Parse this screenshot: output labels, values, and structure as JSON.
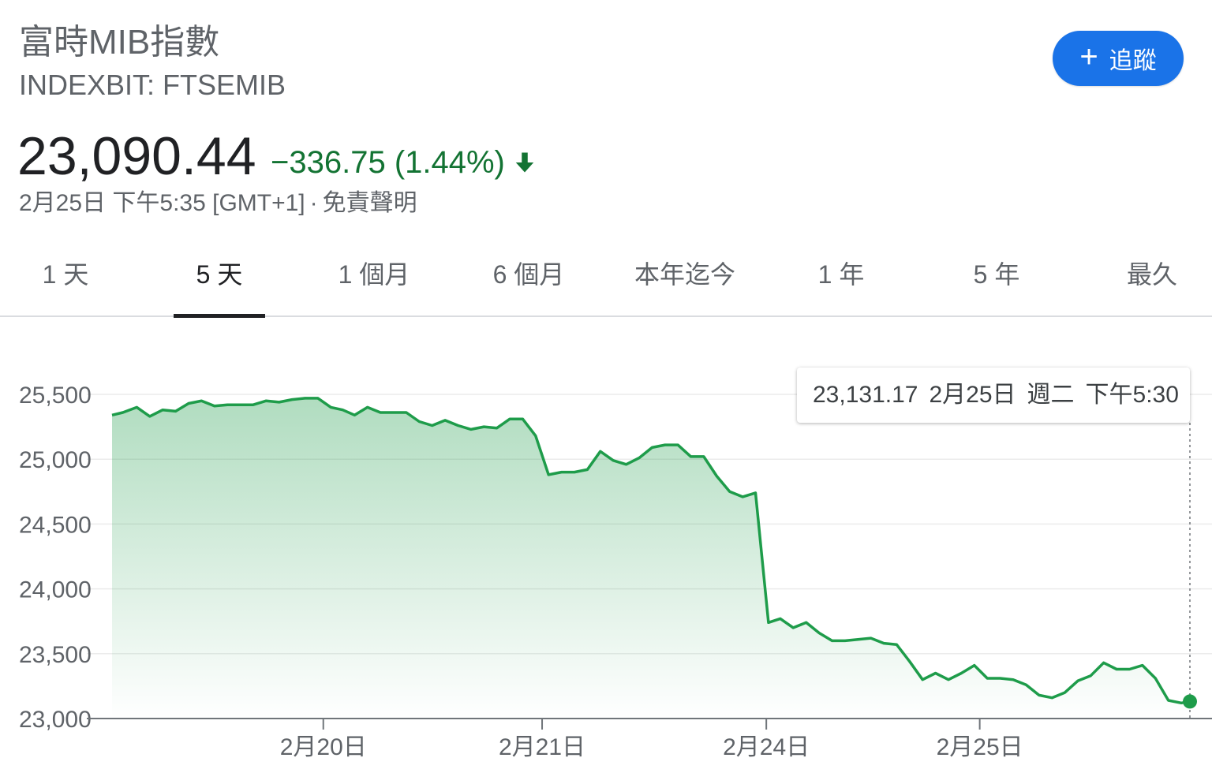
{
  "header": {
    "title": "富時MIB指數",
    "subtitle": "INDEXBIT: FTSEMIB",
    "follow_label": "追蹤"
  },
  "quote": {
    "price": "23,090.44",
    "change": "−336.75 (1.44%)",
    "direction": "down",
    "timestamp": "2月25日 下午5:35 [GMT+1]",
    "separator": "·",
    "disclaimer": "免責聲明"
  },
  "tabs": [
    {
      "label": "1 天",
      "active": false
    },
    {
      "label": "5 天",
      "active": true
    },
    {
      "label": "1 個月",
      "active": false
    },
    {
      "label": "6 個月",
      "active": false
    },
    {
      "label": "本年迄今",
      "active": false
    },
    {
      "label": "1 年",
      "active": false
    },
    {
      "label": "5 年",
      "active": false
    },
    {
      "label": "最久",
      "active": false
    }
  ],
  "tooltip": {
    "value": "23,131.17",
    "date": "2月25日",
    "weekday": "週二",
    "time": "下午5:30"
  },
  "colors": {
    "positive": "#137333",
    "line": "#1e9c4a",
    "accent": "#1a73e8"
  },
  "chart_data": {
    "type": "area",
    "title": "",
    "xlabel": "",
    "ylabel": "",
    "ylim": [
      23000,
      25700
    ],
    "yticks": [
      23000,
      23500,
      24000,
      24500,
      25000,
      25500
    ],
    "ytick_labels": [
      "23,000",
      "23,500",
      "24,000",
      "24,500",
      "25,000",
      "25,500"
    ],
    "x_range": [
      0,
      100
    ],
    "day_ticks": [
      {
        "x": 19.6,
        "label": "2月20日"
      },
      {
        "x": 39.9,
        "label": "2月21日"
      },
      {
        "x": 60.7,
        "label": "2月24日"
      },
      {
        "x": 80.5,
        "label": "2月25日"
      }
    ],
    "series": [
      {
        "x": [
          0,
          1,
          2.3,
          3.5,
          4.7,
          5.9,
          7.1,
          8.3,
          9.5,
          10.7,
          11.9,
          13.1,
          14.3,
          15.5,
          16.7,
          17.9,
          19.1,
          20.3,
          21.4,
          22.5,
          23.7,
          24.9,
          26.1,
          27.3,
          28.5,
          29.7,
          30.9,
          32.1,
          33.3,
          34.5,
          35.7,
          36.9,
          38.1,
          39.3,
          40.5,
          41.7,
          42.9,
          44.1,
          45.3,
          46.5,
          47.7,
          48.9,
          50.1,
          51.3,
          52.5,
          53.7,
          54.9,
          56.1,
          57.3,
          58.5,
          59.7,
          60.9,
          62.0,
          63.2,
          64.4,
          65.6,
          66.8,
          68.0,
          69.2,
          70.4,
          71.6,
          72.8,
          74.0,
          75.2,
          76.4,
          77.6,
          78.8,
          80.0,
          81.2,
          82.4,
          83.6,
          84.8,
          86.0,
          87.2,
          88.4,
          89.6,
          90.8,
          92.0,
          93.2,
          94.4,
          95.6,
          96.8,
          98.0,
          99.2,
          100
        ],
        "values": [
          25340,
          25360,
          25400,
          25330,
          25380,
          25370,
          25430,
          25450,
          25410,
          25420,
          25420,
          25420,
          25450,
          25440,
          25460,
          25470,
          25470,
          25400,
          25380,
          25340,
          25400,
          25360,
          25360,
          25360,
          25290,
          25260,
          25300,
          25260,
          25230,
          25250,
          25240,
          25310,
          25310,
          25180,
          24880,
          24900,
          24900,
          24920,
          25060,
          24990,
          24960,
          25010,
          25090,
          25110,
          25110,
          25020,
          25020,
          24870,
          24750,
          24710,
          24740,
          23740,
          23770,
          23700,
          23740,
          23660,
          23600,
          23600,
          23610,
          23620,
          23580,
          23570,
          23440,
          23300,
          23350,
          23300,
          23350,
          23410,
          23310,
          23310,
          23300,
          23260,
          23180,
          23160,
          23200,
          23290,
          23330,
          23430,
          23380,
          23380,
          23410,
          23310,
          23140,
          23120,
          23131.17
        ]
      }
    ]
  }
}
